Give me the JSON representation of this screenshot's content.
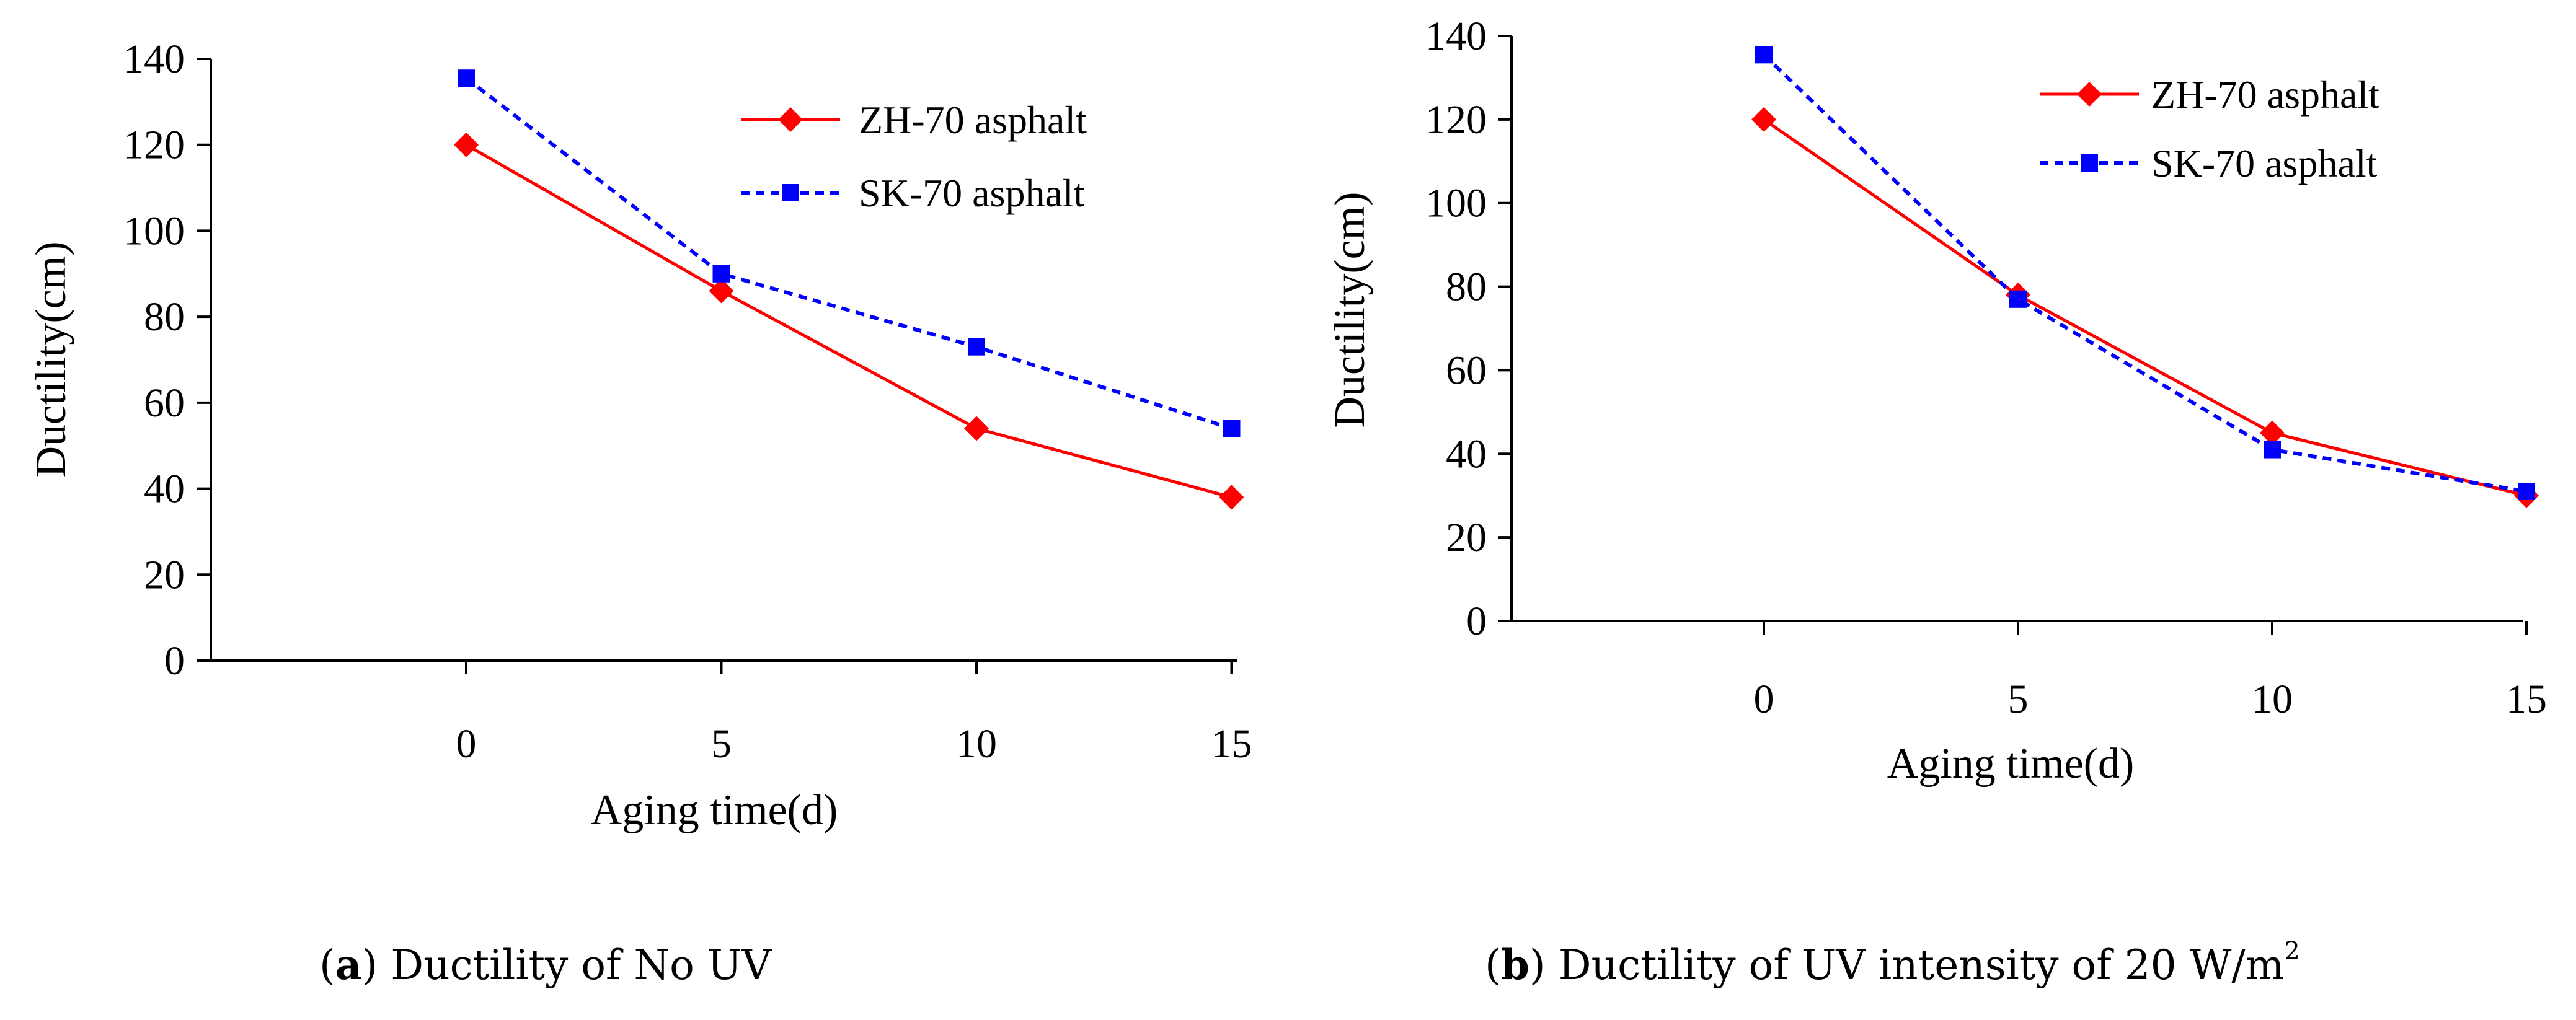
{
  "chart_data": [
    {
      "type": "line",
      "title": "",
      "xlabel": "Aging time(d)",
      "ylabel": "Ductility(cm)",
      "x": [
        0,
        5,
        10,
        15
      ],
      "xticks": [
        "0",
        "5",
        "10",
        "15"
      ],
      "ylim": [
        0,
        140
      ],
      "yticks": [
        "0",
        "20",
        "40",
        "60",
        "80",
        "100",
        "120",
        "140"
      ],
      "legend_position": "top-right",
      "series": [
        {
          "name": "ZH-70 asphalt",
          "values": [
            120,
            86,
            54,
            38
          ],
          "color": "#ff0000",
          "marker": "diamond",
          "line": "solid"
        },
        {
          "name": "SK-70 asphalt",
          "values": [
            135.5,
            90,
            73,
            54
          ],
          "color": "#0000ff",
          "marker": "square",
          "line": "dotted"
        }
      ],
      "caption": {
        "letter": "a",
        "text": "Ductility of No UV"
      }
    },
    {
      "type": "line",
      "title": "",
      "xlabel": "Aging time(d)",
      "ylabel": "Ductility(cm)",
      "x": [
        0,
        5,
        10,
        15
      ],
      "xticks": [
        "0",
        "5",
        "10",
        "15"
      ],
      "ylim": [
        0,
        140
      ],
      "yticks": [
        "0",
        "20",
        "40",
        "60",
        "80",
        "100",
        "120",
        "140"
      ],
      "legend_position": "top-right",
      "series": [
        {
          "name": "ZH-70 asphalt",
          "values": [
            120,
            78,
            45,
            30
          ],
          "color": "#ff0000",
          "marker": "diamond",
          "line": "solid"
        },
        {
          "name": "SK-70 asphalt",
          "values": [
            135.5,
            77,
            41,
            31
          ],
          "color": "#0000ff",
          "marker": "square",
          "line": "dotted"
        }
      ],
      "caption": {
        "letter": "b",
        "text": "Ductility of UV intensity of 20 W/m",
        "superscript": "2"
      }
    }
  ]
}
